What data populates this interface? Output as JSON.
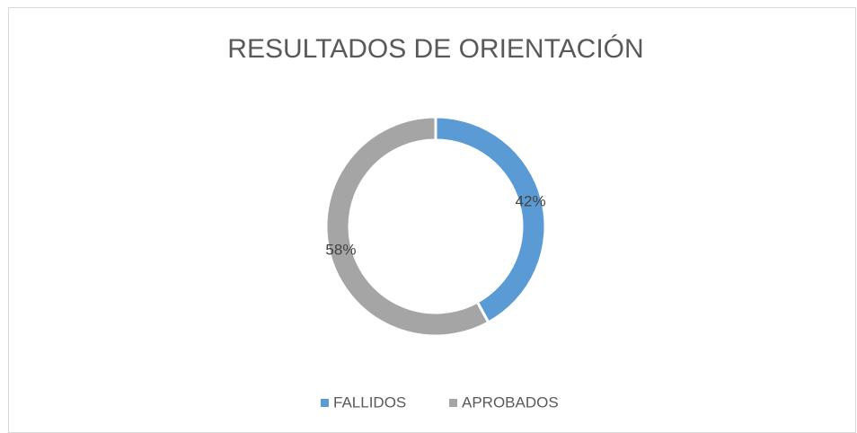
{
  "chart_data": {
    "type": "donut",
    "title": "RESULTADOS DE ORIENTACIÓN",
    "categories": [
      "FALLIDOS",
      "APROBADOS"
    ],
    "values": [
      42,
      58
    ],
    "value_labels": [
      "42%",
      "58%"
    ],
    "colors": [
      "#5b9bd5",
      "#a5a5a5"
    ]
  }
}
